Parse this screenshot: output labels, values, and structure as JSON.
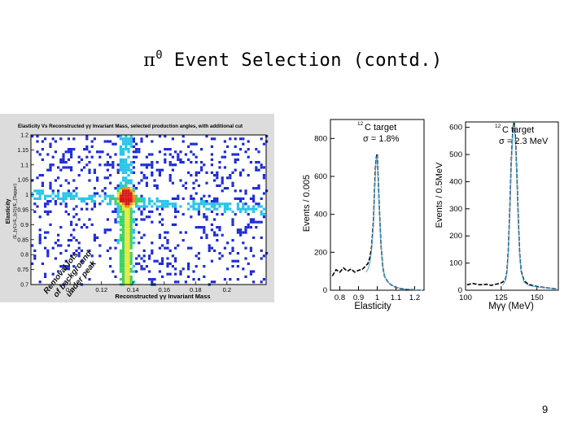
{
  "slide": {
    "title_symbol": "π",
    "title_superscript": "0",
    "title_text": "Event Selection (contd.)",
    "page_number": "9"
  },
  "chart_data": [
    {
      "type": "heatmap",
      "title": "Elasticity Vs Reconstructed γγ Invariant Mass, selected production angles, with additional cut",
      "xlabel": "Reconstructed γγ Invariant Mass",
      "ylabel": "Elasticity (E_{γ1}+E_{γ2})/E_{Tagger}",
      "ylabel_main": "Elasticity",
      "ylabel_fraction": "(E_{γ1}+E_{γ2})/E_{Tagger}",
      "xlim": [
        0.075,
        0.225
      ],
      "ylim": [
        0.7,
        1.2
      ],
      "x_ticks": [
        "0.1",
        "0.12",
        "0.14",
        "0.16",
        "0.18",
        "0.2"
      ],
      "x_tick_values": [
        0.1,
        0.12,
        0.14,
        0.16,
        0.18,
        0.2
      ],
      "y_ticks": [
        "1.2",
        "1.15",
        "1.1",
        "1.05",
        "1",
        "0.95",
        "0.9",
        "0.85",
        "0.8",
        "0.75",
        "0.7"
      ],
      "y_tick_values": [
        1.2,
        1.15,
        1.1,
        1.05,
        1.0,
        0.95,
        0.9,
        0.85,
        0.8,
        0.75,
        0.7
      ],
      "peak": {
        "x": 0.135,
        "y": 1.0
      },
      "annotation_lines": [
        "Removal lots",
        "of background",
        "under peak"
      ],
      "colors": [
        "#1d2bd6",
        "#27c4e8",
        "#38d36a",
        "#e8e83a",
        "#ef8a1e",
        "#d81818"
      ]
    },
    {
      "type": "line",
      "xlabel": "Elasticity",
      "ylabel": "Events / 0.005",
      "xlim": [
        0.75,
        1.25
      ],
      "ylim": [
        0,
        900
      ],
      "x_ticks": [
        "0.8",
        "0.9",
        "1",
        "1.1",
        "1.2"
      ],
      "x_tick_values": [
        0.8,
        0.9,
        1.0,
        1.1,
        1.2
      ],
      "y_ticks": [
        "0",
        "200",
        "400",
        "600",
        "800"
      ],
      "y_tick_values": [
        0,
        200,
        400,
        600,
        800
      ],
      "annotation_target_sup": "12",
      "annotation_target": "C target",
      "annotation_sigma": "σ = 1.8%",
      "series": [
        {
          "x": [
            0.76,
            0.78,
            0.8,
            0.82,
            0.84,
            0.86,
            0.88,
            0.9,
            0.92,
            0.94,
            0.95,
            0.96,
            0.97,
            0.98,
            0.985,
            0.99,
            0.995,
            1.0,
            1.005,
            1.01,
            1.02,
            1.03,
            1.04,
            1.06,
            1.08,
            1.1,
            1.12,
            1.15,
            1.2,
            1.24
          ],
          "y": [
            75,
            108,
            95,
            118,
            100,
            112,
            95,
            105,
            110,
            130,
            140,
            170,
            230,
            370,
            510,
            640,
            700,
            720,
            600,
            460,
            240,
            120,
            70,
            40,
            25,
            15,
            10,
            5,
            2,
            0
          ]
        },
        {
          "x": [
            0.94,
            0.95,
            0.96,
            0.97,
            0.98,
            0.985,
            0.99,
            0.995,
            1.0,
            1.005,
            1.01,
            1.02,
            1.03,
            1.04,
            1.06,
            1.08,
            1.1,
            1.15,
            1.2,
            1.24
          ],
          "y": [
            95,
            110,
            140,
            210,
            350,
            490,
            620,
            690,
            710,
            590,
            450,
            240,
            120,
            70,
            40,
            25,
            15,
            6,
            2,
            0
          ]
        }
      ]
    },
    {
      "type": "line",
      "xlabel": "Mγγ (MeV)",
      "ylabel": "Events / 0.5MeV",
      "xlim": [
        100,
        165
      ],
      "ylim": [
        0,
        620
      ],
      "x_ticks": [
        "100",
        "125",
        "150"
      ],
      "x_tick_values": [
        100,
        125,
        150
      ],
      "y_ticks": [
        "0",
        "100",
        "200",
        "300",
        "400",
        "500",
        "600"
      ],
      "y_tick_values": [
        0,
        100,
        200,
        300,
        400,
        500,
        600
      ],
      "annotation_target_sup": "12",
      "annotation_target": "C target",
      "annotation_sigma": "σ = 2.3 MeV",
      "series": [
        {
          "x": [
            101,
            105,
            110,
            115,
            118,
            121,
            124,
            126,
            128,
            129,
            130,
            131,
            132,
            133,
            134,
            135,
            136,
            137,
            138,
            139,
            141,
            144,
            148,
            152,
            158,
            164
          ],
          "y": [
            20,
            25,
            20,
            22,
            18,
            22,
            25,
            30,
            40,
            70,
            150,
            300,
            470,
            580,
            620,
            560,
            420,
            260,
            130,
            70,
            35,
            22,
            16,
            12,
            8,
            5
          ]
        },
        {
          "x": [
            126,
            128,
            129,
            130,
            131,
            132,
            133,
            134,
            135,
            136,
            137,
            138,
            139,
            141,
            144,
            150,
            158,
            164
          ],
          "y": [
            18,
            35,
            65,
            140,
            290,
            460,
            570,
            610,
            550,
            410,
            250,
            125,
            65,
            30,
            18,
            12,
            8,
            5
          ]
        }
      ]
    }
  ]
}
